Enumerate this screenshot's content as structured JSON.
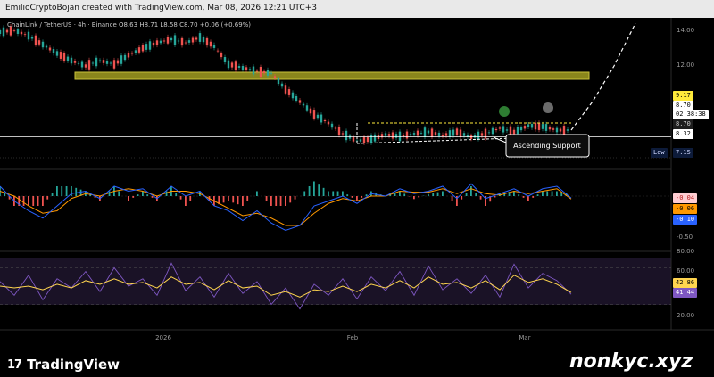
{
  "header": {
    "credit": "EmilioCryptoBojan created with TradingView.com, Mar 08, 2026 12:21 UTC+3"
  },
  "legend": {
    "text": "ChainLink / TetherUS · 4h · Binance  O8.63  H8.71  L8.58  C8.70  +0.06 (+0.69%)"
  },
  "chart_data": {
    "type": "line",
    "symbol": "ChainLink / TetherUS · 4h · Binance",
    "ohlc": {
      "open": 8.63,
      "high": 8.71,
      "low": 8.58,
      "close": 8.7,
      "change": "+0.06 (+0.69%)"
    },
    "x_ticks": [
      "2026",
      "Feb",
      "Mar"
    ],
    "price_axis": {
      "ticks": [
        "14.00",
        "12.00"
      ],
      "ylim": [
        6.9,
        14.6
      ],
      "labels": {
        "alert": "9.17",
        "last": "8.70",
        "countdown": "02:38:38",
        "close": "8.70",
        "support": "8.32",
        "low_title": "Low",
        "low": "7.15"
      }
    },
    "price_series": {
      "x": [
        0,
        4,
        8,
        12,
        16,
        20,
        24,
        28,
        32,
        36,
        40,
        44,
        48,
        52,
        56,
        60,
        64,
        68,
        72,
        76,
        80,
        84,
        88,
        92,
        96,
        100,
        104,
        108,
        112,
        116,
        120,
        124,
        128,
        132,
        136,
        140,
        144,
        148,
        152,
        156,
        160
      ],
      "y": [
        14.2,
        14.3,
        14.0,
        13.5,
        13.0,
        12.6,
        12.3,
        12.6,
        12.4,
        12.9,
        13.3,
        13.6,
        13.8,
        13.6,
        13.9,
        13.4,
        12.4,
        12.2,
        12.0,
        11.9,
        11.0,
        10.3,
        9.6,
        9.1,
        8.5,
        8.1,
        8.2,
        8.45,
        8.35,
        8.5,
        8.6,
        8.4,
        8.6,
        8.3,
        8.5,
        8.8,
        8.6,
        8.95,
        8.9,
        8.7,
        8.7
      ]
    },
    "projection": {
      "x": [
        160,
        166,
        172,
        178
      ],
      "y": [
        8.7,
        10.3,
        12.3,
        14.7
      ]
    },
    "resistance_zone": {
      "y": [
        11.55,
        11.95
      ]
    },
    "support_line": {
      "x": [
        100,
        154
      ],
      "y": [
        7.95,
        8.32
      ]
    },
    "range_top": {
      "x": [
        103,
        160
      ],
      "y": 9.1
    },
    "annotation": "Ascending Support",
    "macd": {
      "labels": [
        "-0.04",
        "-0.06",
        "-0.10",
        "-0.50"
      ],
      "macd": [
        0.2,
        -0.1,
        -0.3,
        -0.45,
        -0.2,
        0.05,
        0.1,
        -0.05,
        0.2,
        0.1,
        0.15,
        -0.05,
        0.2,
        0.0,
        0.1,
        -0.2,
        -0.3,
        -0.5,
        -0.3,
        -0.55,
        -0.7,
        -0.6,
        -0.2,
        -0.1,
        0.0,
        -0.15,
        0.05,
        0.0,
        0.15,
        0.05,
        0.1,
        0.2,
        -0.05,
        0.25,
        -0.05,
        0.05,
        0.15,
        0.0,
        0.15,
        0.2,
        -0.04
      ],
      "signal": [
        0.1,
        0.0,
        -0.2,
        -0.35,
        -0.3,
        -0.05,
        0.05,
        0.0,
        0.1,
        0.15,
        0.1,
        0.0,
        0.1,
        0.1,
        0.05,
        -0.1,
        -0.25,
        -0.4,
        -0.35,
        -0.45,
        -0.6,
        -0.6,
        -0.35,
        -0.15,
        -0.05,
        -0.1,
        0.0,
        0.0,
        0.1,
        0.08,
        0.08,
        0.15,
        0.05,
        0.15,
        0.05,
        0.02,
        0.1,
        0.05,
        0.1,
        0.15,
        -0.06
      ]
    },
    "rsi": {
      "ticks": [
        "80.00",
        "60.00",
        "20.00"
      ],
      "labels": {
        "ma": "42.86",
        "rsi": "41.44"
      },
      "rsi": [
        55,
        40,
        62,
        35,
        58,
        48,
        66,
        44,
        70,
        50,
        58,
        40,
        75,
        45,
        60,
        38,
        64,
        42,
        55,
        30,
        48,
        25,
        52,
        40,
        58,
        36,
        60,
        45,
        66,
        40,
        72,
        46,
        58,
        42,
        62,
        38,
        74,
        48,
        64,
        56,
        41
      ],
      "rsi_ma": [
        50,
        48,
        50,
        46,
        52,
        48,
        56,
        52,
        58,
        52,
        54,
        48,
        60,
        52,
        54,
        46,
        56,
        48,
        50,
        40,
        44,
        38,
        46,
        44,
        50,
        44,
        52,
        48,
        56,
        48,
        60,
        52,
        54,
        48,
        56,
        46,
        62,
        54,
        58,
        52,
        43
      ]
    }
  },
  "footer": {
    "brand": "TradingView",
    "brand_mark": "17",
    "watermark": "nonkyc.xyz"
  },
  "colors": {
    "zone": "#8a861c",
    "up": "#26a69a",
    "down": "#ef5350",
    "macd": "#2962ff",
    "signal": "#ff9800",
    "rsi": "#7e57c2",
    "rsi_ma": "#ffd54f"
  }
}
